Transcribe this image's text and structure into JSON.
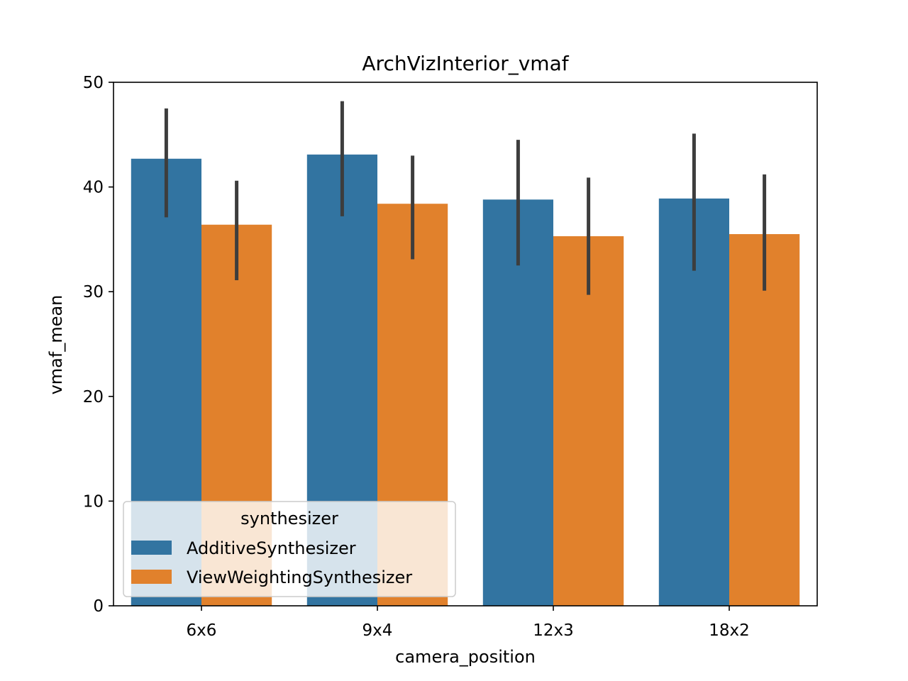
{
  "chart_data": {
    "type": "bar",
    "title": "ArchVizInterior_vmaf",
    "xlabel": "camera_position",
    "ylabel": "vmaf_mean",
    "categories": [
      "6x6",
      "9x4",
      "12x3",
      "18x2"
    ],
    "ylim": [
      0,
      50
    ],
    "yticks": [
      0,
      10,
      20,
      30,
      40,
      50
    ],
    "grid": false,
    "series": [
      {
        "name": "AdditiveSynthesizer",
        "color": "#3274a1",
        "values": [
          42.7,
          43.1,
          38.8,
          38.9
        ],
        "error_low": [
          37.1,
          37.2,
          32.5,
          32.0
        ],
        "error_high": [
          47.5,
          48.2,
          44.5,
          45.1
        ]
      },
      {
        "name": "ViewWeightingSynthesizer",
        "color": "#e1812c",
        "values": [
          36.4,
          38.4,
          35.3,
          35.5
        ],
        "error_low": [
          31.1,
          33.1,
          29.7,
          30.1
        ],
        "error_high": [
          40.6,
          43.0,
          40.9,
          41.2
        ]
      }
    ],
    "errorbar_color": "#3d3d3d",
    "legend": {
      "title": "synthesizer",
      "position": "lower-left"
    }
  }
}
